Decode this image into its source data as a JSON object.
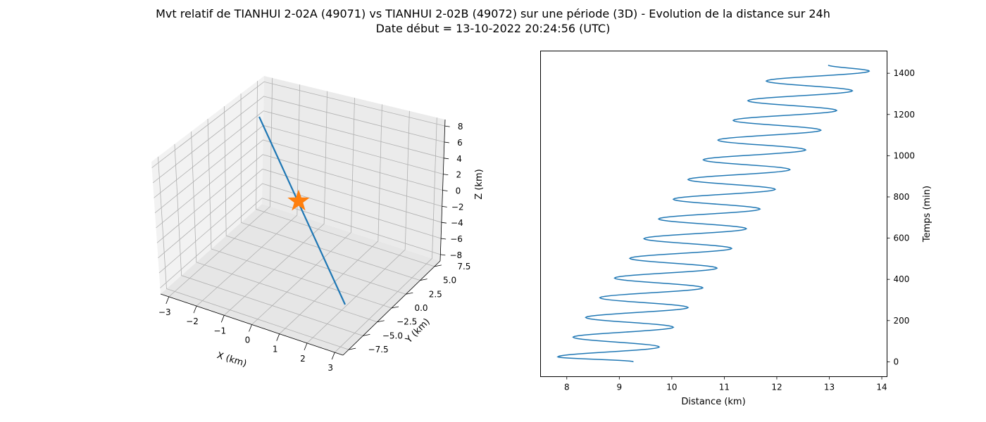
{
  "figure": {
    "title_line1": "Mvt relatif de TIANHUI 2-02A (49071) vs TIANHUI 2-02B (49072) sur une période (3D) - Evolution de la distance sur 24h",
    "title_line2": "Date début = 13-10-2022 20:24:56 (UTC)"
  },
  "colors": {
    "series": "#1f77b4",
    "marker": "#ff7f0e",
    "pane": "#f2f2f2",
    "grid": "#b0b0b0"
  },
  "chart_data": [
    {
      "type": "line3d",
      "xlabel": "X (km)",
      "ylabel": "Y (km)",
      "zlabel": "Z (km)",
      "xlim": [
        -3.3,
        3.3
      ],
      "ylim": [
        -8.5,
        8.5
      ],
      "zlim": [
        -8.8,
        8.8
      ],
      "x_ticks": [
        "−3",
        "−2",
        "−1",
        "0",
        "1",
        "2",
        "3"
      ],
      "y_ticks": [
        "−7.5",
        "−5.0",
        "−2.5",
        "0.0",
        "2.5",
        "5.0",
        "7.5"
      ],
      "z_ticks": [
        "−8",
        "−6",
        "−4",
        "−2",
        "0",
        "2",
        "4",
        "6",
        "8"
      ],
      "trajectory_endpoints": [
        {
          "x": -3.0,
          "y": 2.0,
          "z": 7.0
        },
        {
          "x": 3.0,
          "y": -2.0,
          "z": -7.0
        }
      ],
      "marker": {
        "symbol": "star",
        "x": 0,
        "y": 0,
        "z": 0
      },
      "grid": true
    },
    {
      "type": "line",
      "xlabel": "Distance (km)",
      "ylabel": "Temps (min)",
      "xlim": [
        7.5,
        14.1
      ],
      "ylim": [
        -72,
        1508
      ],
      "x_ticks": [
        "8",
        "9",
        "10",
        "11",
        "12",
        "13",
        "14"
      ],
      "y_ticks": [
        "0",
        "200",
        "400",
        "600",
        "800",
        "1000",
        "1200",
        "1400"
      ],
      "series": [
        {
          "description": "oscillating distance, period ~95 min, growing drift",
          "distance_start_km": 9.27,
          "distance_end_km": 12.98,
          "time_start_min": 0,
          "time_end_min": 1440,
          "oscillation_amplitude_km": 0.97,
          "oscillation_period_min": 95.6,
          "left_extrema_km": [
            7.83,
            8.12,
            8.36,
            8.63,
            8.91,
            9.2,
            9.47,
            9.75,
            10.03,
            10.31,
            10.6,
            10.88,
            11.17,
            11.45,
            11.8
          ],
          "right_extrema_km": [
            9.76,
            10.03,
            10.31,
            10.59,
            10.86,
            11.14,
            11.42,
            11.68,
            11.97,
            12.25,
            12.55,
            12.84,
            13.14,
            13.44,
            13.76
          ]
        }
      ],
      "y_axis_position": "right",
      "grid": false
    }
  ]
}
